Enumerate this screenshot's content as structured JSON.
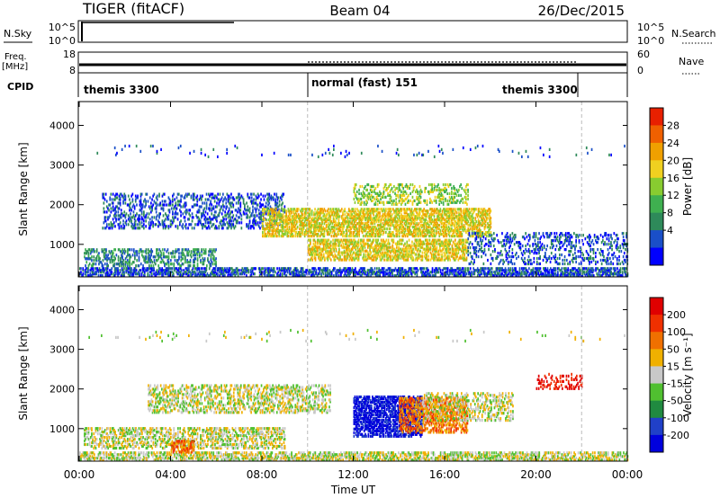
{
  "header": {
    "radar": "TIGER (fitACF)",
    "beam": "Beam 04",
    "date": "26/Dec/2015"
  },
  "top_panels": {
    "nsky_label": "N.Sky",
    "nsearch_label": "N.Search",
    "nsky_ticks": [
      "10^5",
      "10^0"
    ],
    "freq_label_1": "Freq.",
    "freq_label_2": "[MHz]",
    "freq_ticks": [
      "18",
      "8"
    ],
    "nave_label": "Nave",
    "nave_ticks": [
      "60",
      "0"
    ],
    "cpid_label": "CPID",
    "cpid_segments": [
      {
        "label": "themis 3300",
        "start_hour": 0,
        "end_hour": 10
      },
      {
        "label": "normal (fast) 151",
        "start_hour": 10,
        "end_hour": 22
      },
      {
        "label": "themis 3300",
        "start_hour": 22,
        "end_hour": 24
      }
    ]
  },
  "chart_data": [
    {
      "type": "heatmap",
      "name": "Power",
      "ylabel": "Slant Range [km]",
      "xlabel": "Time UT",
      "x_range_hours": [
        0,
        24
      ],
      "ylim": [
        180,
        4600
      ],
      "yticks": [
        1000,
        2000,
        3000,
        4000
      ],
      "colorbar_label": "Power [dB]",
      "colorbar_ticks": [
        "28",
        "24",
        "20",
        "16",
        "12",
        "8",
        "4"
      ],
      "colorbar_colors": [
        "#0000ff",
        "#1a4fc8",
        "#2e8a5a",
        "#3fb050",
        "#88cc30",
        "#f0d020",
        "#f0a000",
        "#f06000",
        "#e82000"
      ]
    },
    {
      "type": "heatmap",
      "name": "Velocity",
      "ylabel": "Slant Range [km]",
      "xlabel": "Time UT",
      "x_range_hours": [
        0,
        24
      ],
      "ylim": [
        180,
        4600
      ],
      "yticks": [
        1000,
        2000,
        3000,
        4000
      ],
      "colorbar_label": "Velocity [m s⁻¹]",
      "colorbar_ticks": [
        "200",
        "100",
        "50",
        "15",
        "-15",
        "-50",
        "-100",
        "-200"
      ],
      "colorbar_colors": [
        "#0000dd",
        "#2040c8",
        "#208a40",
        "#50c030",
        "#c8c8c8",
        "#f0b000",
        "#f07000",
        "#f03000",
        "#e00000"
      ]
    }
  ],
  "x_axis": {
    "ticks": [
      "00:00",
      "04:00",
      "08:00",
      "12:00",
      "16:00",
      "20:00",
      "00:00"
    ],
    "label": "Time UT"
  }
}
